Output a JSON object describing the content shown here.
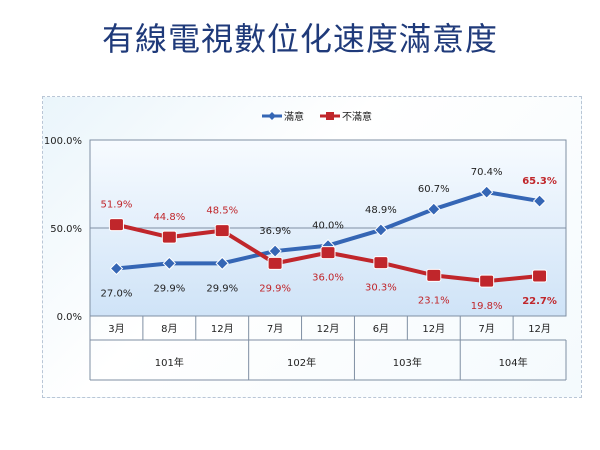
{
  "title": "有線電視數位化速度滿意度",
  "chart_data": {
    "type": "line",
    "categories": [
      "3月",
      "8月",
      "12月",
      "7月",
      "12月",
      "6月",
      "12月",
      "7月",
      "12月"
    ],
    "groups": [
      {
        "label": "101年",
        "count": 3
      },
      {
        "label": "102年",
        "count": 2
      },
      {
        "label": "103年",
        "count": 2
      },
      {
        "label": "104年",
        "count": 2
      }
    ],
    "ylim": [
      0,
      100
    ],
    "yticks": [
      "0.0%",
      "50.0%",
      "100.0%"
    ],
    "legend_position": "top",
    "grid": true,
    "series": [
      {
        "name": "滿意",
        "color": "#3566b5",
        "values": [
          27.0,
          29.9,
          29.9,
          36.9,
          40.0,
          48.9,
          60.7,
          70.4,
          65.3
        ],
        "labels": [
          "27.0%",
          "29.9%",
          "29.9%",
          "36.9%",
          "40.0%",
          "48.9%",
          "60.7%",
          "70.4%",
          "65.3%"
        ]
      },
      {
        "name": "不滿意",
        "color": "#c0262b",
        "values": [
          51.9,
          44.8,
          48.5,
          29.9,
          36.0,
          30.3,
          23.1,
          19.8,
          22.7
        ],
        "labels": [
          "51.9%",
          "44.8%",
          "48.5%",
          "29.9%",
          "36.0%",
          "30.3%",
          "23.1%",
          "19.8%",
          "22.7%"
        ]
      }
    ]
  }
}
